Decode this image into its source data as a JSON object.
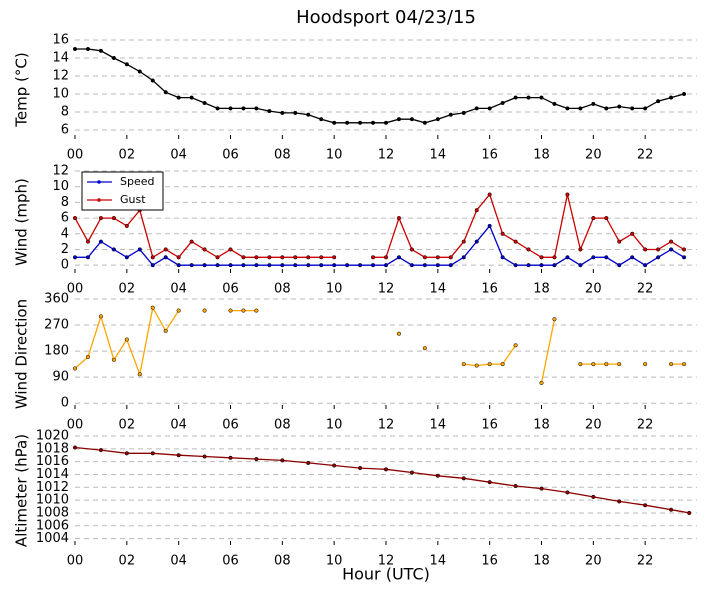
{
  "chart_data": [
    {
      "type": "line",
      "title": "Hoodsport 04/23/15",
      "ylabel": "Temp (°C)",
      "x": [
        0,
        0.5,
        1,
        1.5,
        2,
        2.5,
        3,
        3.5,
        4,
        4.5,
        5,
        5.5,
        6,
        6.5,
        7,
        7.5,
        8,
        8.5,
        9,
        9.5,
        10,
        10.5,
        11,
        11.5,
        12,
        12.5,
        13,
        13.5,
        14,
        14.5,
        15,
        15.5,
        16,
        16.5,
        17,
        17.5,
        18,
        18.5,
        19,
        19.5,
        20,
        20.5,
        21,
        21.5,
        22,
        22.5,
        23,
        23.5
      ],
      "series": [
        {
          "color": "#000000",
          "values": [
            15,
            15,
            14.8,
            14,
            13.3,
            12.5,
            11.5,
            10.2,
            9.6,
            9.6,
            9,
            8.4,
            8.4,
            8.4,
            8.4,
            8.1,
            7.9,
            7.9,
            7.7,
            7.2,
            6.8,
            6.8,
            6.8,
            6.8,
            6.8,
            7.2,
            7.2,
            6.8,
            7.2,
            7.7,
            7.9,
            8.4,
            8.4,
            9,
            9.6,
            9.6,
            9.6,
            8.9,
            8.4,
            8.4,
            8.9,
            8.4,
            8.6,
            8.4,
            8.4,
            9.2,
            9.6,
            10
          ]
        }
      ],
      "xlim": [
        0,
        24
      ],
      "ylim": [
        5,
        16
      ],
      "xticks": [
        {
          "value": 0,
          "label": "00"
        },
        {
          "value": 2,
          "label": "02"
        },
        {
          "value": 4,
          "label": "04"
        },
        {
          "value": 6,
          "label": "06"
        },
        {
          "value": 8,
          "label": "08"
        },
        {
          "value": 10,
          "label": "10"
        },
        {
          "value": 12,
          "label": "12"
        },
        {
          "value": 14,
          "label": "14"
        },
        {
          "value": 16,
          "label": "16"
        },
        {
          "value": 18,
          "label": "18"
        },
        {
          "value": 20,
          "label": "20"
        },
        {
          "value": 22,
          "label": "22"
        }
      ],
      "yticks": [
        6,
        8,
        10,
        12,
        14,
        16
      ],
      "grid": true
    },
    {
      "type": "line",
      "ylabel": "Wind (mph)",
      "legend": "upper left",
      "x": [
        0,
        0.5,
        1,
        1.5,
        2,
        2.5,
        3,
        3.5,
        4,
        4.5,
        5,
        5.5,
        6,
        6.5,
        7,
        7.5,
        8,
        8.5,
        9,
        9.5,
        10,
        10.5,
        11,
        11.5,
        12,
        12.5,
        13,
        13.5,
        14,
        14.5,
        15,
        15.5,
        16,
        16.5,
        17,
        17.5,
        18,
        18.5,
        19,
        19.5,
        20,
        20.5,
        21,
        21.5,
        22,
        22.5,
        23,
        23.5
      ],
      "series": [
        {
          "name": "Speed",
          "color": "#0000cc",
          "values": [
            1,
            1,
            3,
            2,
            1,
            2,
            0,
            1,
            0,
            0,
            0,
            0,
            0,
            0,
            0,
            0,
            0,
            0,
            0,
            0,
            0,
            0,
            0,
            0,
            0,
            1,
            0,
            0,
            0,
            0,
            1,
            3,
            5,
            1,
            0,
            0,
            0,
            0,
            1,
            0,
            1,
            1,
            0,
            1,
            0,
            1,
            2,
            1
          ]
        },
        {
          "name": "Gust",
          "color": "#cc0000",
          "values": [
            6,
            3,
            6,
            6,
            5,
            7,
            1,
            2,
            1,
            3,
            2,
            1,
            2,
            1,
            1,
            1,
            1,
            1,
            1,
            1,
            1,
            null,
            null,
            1,
            1,
            6,
            2,
            1,
            1,
            1,
            3,
            7,
            9,
            4,
            3,
            2,
            1,
            1,
            9,
            2,
            6,
            6,
            3,
            4,
            2,
            2,
            3,
            2
          ]
        }
      ],
      "xlim": [
        0,
        24
      ],
      "ylim": [
        -1,
        12
      ],
      "xticks": [
        {
          "value": 0,
          "label": "00"
        },
        {
          "value": 2,
          "label": "02"
        },
        {
          "value": 4,
          "label": "04"
        },
        {
          "value": 6,
          "label": "06"
        },
        {
          "value": 8,
          "label": "08"
        },
        {
          "value": 10,
          "label": "10"
        },
        {
          "value": 12,
          "label": "12"
        },
        {
          "value": 14,
          "label": "14"
        },
        {
          "value": 16,
          "label": "16"
        },
        {
          "value": 18,
          "label": "18"
        },
        {
          "value": 20,
          "label": "20"
        },
        {
          "value": 22,
          "label": "22"
        }
      ],
      "yticks": [
        0,
        2,
        4,
        6,
        8,
        10,
        12
      ],
      "grid": true
    },
    {
      "type": "line",
      "ylabel": "Wind Direction",
      "x": [
        0,
        0.5,
        1,
        1.5,
        2,
        2.5,
        3,
        3.5,
        4,
        4.5,
        5,
        5.5,
        6,
        6.5,
        7,
        7.5,
        8,
        8.5,
        9,
        9.5,
        10,
        10.5,
        11,
        11.5,
        12,
        12.5,
        13,
        13.5,
        14,
        14.5,
        15,
        15.5,
        16,
        16.5,
        17,
        17.5,
        18,
        18.5,
        19,
        19.5,
        20,
        20.5,
        21,
        21.5,
        22,
        22.5,
        23,
        23.5
      ],
      "series": [
        {
          "color": "#ffa500",
          "values": [
            120,
            160,
            300,
            150,
            220,
            100,
            330,
            250,
            320,
            null,
            320,
            null,
            320,
            320,
            320,
            null,
            null,
            null,
            null,
            null,
            null,
            null,
            null,
            null,
            null,
            240,
            null,
            190,
            null,
            null,
            135,
            130,
            135,
            135,
            200,
            null,
            70,
            290,
            null,
            135,
            135,
            135,
            135,
            null,
            135,
            null,
            135,
            135
          ]
        }
      ],
      "xlim": [
        0,
        24
      ],
      "ylim": [
        -20,
        360
      ],
      "xticks": [
        {
          "value": 0,
          "label": "00"
        },
        {
          "value": 2,
          "label": "02"
        },
        {
          "value": 4,
          "label": "04"
        },
        {
          "value": 6,
          "label": "06"
        },
        {
          "value": 8,
          "label": "08"
        },
        {
          "value": 10,
          "label": "10"
        },
        {
          "value": 12,
          "label": "12"
        },
        {
          "value": 14,
          "label": "14"
        },
        {
          "value": 16,
          "label": "16"
        },
        {
          "value": 18,
          "label": "18"
        },
        {
          "value": 20,
          "label": "20"
        },
        {
          "value": 22,
          "label": "22"
        }
      ],
      "yticks": [
        0,
        90,
        180,
        270,
        360
      ],
      "grid": true
    },
    {
      "type": "line",
      "ylabel": "Altimeter (hPa)",
      "xlabel": "Hour (UTC)",
      "x": [
        0,
        1,
        2,
        3,
        4,
        5,
        6,
        7,
        8,
        9,
        10,
        11,
        12,
        13,
        14,
        15,
        16,
        17,
        18,
        19,
        20,
        21,
        22,
        23,
        23.7
      ],
      "series": [
        {
          "color": "#8b0000",
          "values": [
            1018.2,
            1017.8,
            1017.3,
            1017.3,
            1017,
            1016.8,
            1016.6,
            1016.4,
            1016.2,
            1015.8,
            1015.4,
            1015,
            1014.8,
            1014.3,
            1013.8,
            1013.4,
            1012.8,
            1012.2,
            1011.8,
            1011.2,
            1010.5,
            1009.8,
            1009.2,
            1008.5,
            1008
          ]
        }
      ],
      "xlim": [
        0,
        24
      ],
      "ylim": [
        1003,
        1020
      ],
      "xticks": [
        {
          "value": 0,
          "label": "00"
        },
        {
          "value": 2,
          "label": "02"
        },
        {
          "value": 4,
          "label": "04"
        },
        {
          "value": 6,
          "label": "06"
        },
        {
          "value": 8,
          "label": "08"
        },
        {
          "value": 10,
          "label": "10"
        },
        {
          "value": 12,
          "label": "12"
        },
        {
          "value": 14,
          "label": "14"
        },
        {
          "value": 16,
          "label": "16"
        },
        {
          "value": 18,
          "label": "18"
        },
        {
          "value": 20,
          "label": "20"
        },
        {
          "value": 22,
          "label": "22"
        }
      ],
      "yticks": [
        1004,
        1006,
        1008,
        1010,
        1012,
        1014,
        1016,
        1018,
        1020
      ],
      "grid": true
    }
  ]
}
